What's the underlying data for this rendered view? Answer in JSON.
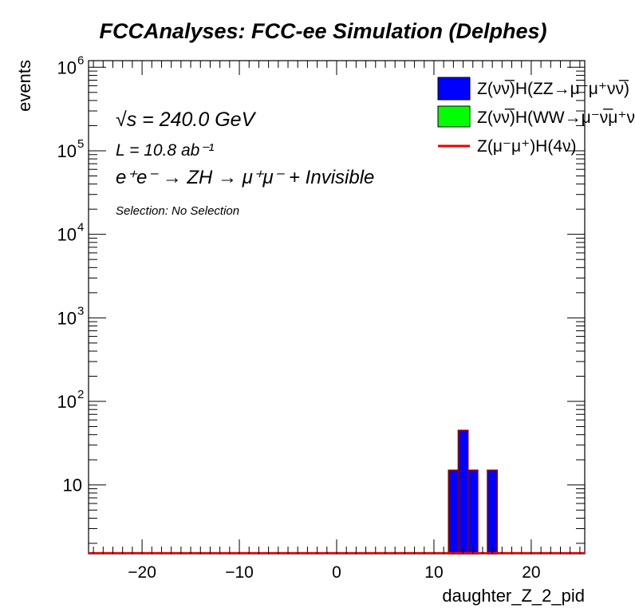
{
  "chart_data": {
    "type": "bar",
    "title": "FCCAnalyses: FCC-ee Simulation (Delphes)",
    "xlabel": "daughter_Z_2_pid",
    "ylabel": "events",
    "log_y": true,
    "xlim": [
      -25.5,
      25.5
    ],
    "ylim": [
      1.5,
      1200000
    ],
    "grid": false,
    "legend_position": "top-right",
    "x_ticks": [
      -20,
      -10,
      0,
      10,
      20
    ],
    "x_tick_labels": [
      "−20",
      "−10",
      "0",
      "10",
      "20"
    ],
    "y_ticks": [
      {
        "value": 10,
        "base": "10",
        "exp": ""
      },
      {
        "value": 100,
        "base": "10",
        "exp": "2"
      },
      {
        "value": 1000,
        "base": "10",
        "exp": "3"
      },
      {
        "value": 10000,
        "base": "10",
        "exp": "4"
      },
      {
        "value": 100000,
        "base": "10",
        "exp": "5"
      },
      {
        "value": 1000000,
        "base": "10",
        "exp": "6"
      }
    ],
    "bins": [
      {
        "x0": 11.5,
        "x1": 12.5,
        "value": 15
      },
      {
        "x0": 12.5,
        "x1": 13.5,
        "value": 45
      },
      {
        "x0": 13.5,
        "x1": 14.5,
        "value": 15
      },
      {
        "x0": 15.5,
        "x1": 16.5,
        "value": 15
      }
    ],
    "series": [
      {
        "name": "Z(νν̅)H(ZZ→μ⁻μ⁺νν̅)",
        "color": "#0000ff",
        "style": "fill"
      },
      {
        "name": "Z(νν̅)H(WW→μ⁻ν̅μ⁺ν)",
        "color": "#00ff00",
        "style": "fill"
      },
      {
        "name": "Z(μ⁻μ⁺)H(4ν)",
        "color": "#ee0000",
        "style": "line"
      }
    ],
    "annotations": {
      "sqrt_s": "√s = 240.0 GeV",
      "lumi": "L = 10.8 ab⁻¹",
      "process": "e⁺e⁻ → ZH → μ⁺μ⁻ + Invisible",
      "selection": "Selection: No Selection"
    },
    "colors": {
      "outline": "#8b0000",
      "frame": "#000000"
    }
  }
}
